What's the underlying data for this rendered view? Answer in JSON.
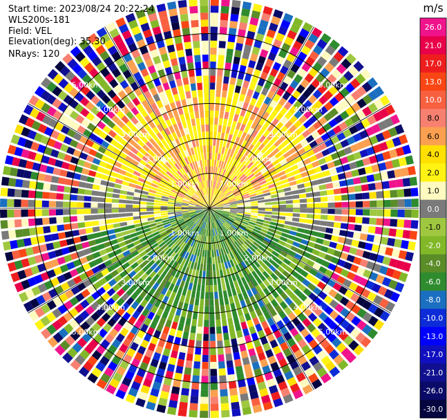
{
  "header": {
    "start_time": "Start time: 2023/08/24 20:22:24",
    "instrument": "WLS200s-181",
    "field": "Field: VEL",
    "elevation": "Elevation(deg): 35.30",
    "nrays": "NRays: 120"
  },
  "chart_data": {
    "type": "heatmap",
    "projection": "polar-ppi",
    "field": "VEL",
    "n_rays": 120,
    "elevation_deg": 35.3,
    "max_range_km": 6.0,
    "range_rings_km": [
      1.0,
      2.0,
      3.0,
      4.0,
      5.0
    ],
    "range_ring_labels": [
      "1.00km",
      "2.00km",
      "3.00km",
      "4.00km",
      "5.00km"
    ],
    "colorbar": {
      "unit": "m/s",
      "ticks": [
        "26.0",
        "21.0",
        "17.0",
        "13.0",
        "10.0",
        "8.0",
        "6.0",
        "4.0",
        "2.0",
        "1.0",
        "0.0",
        "-1.0",
        "-2.0",
        "-4.0",
        "-6.0",
        "-8.0",
        "-10.0",
        "-13.0",
        "-17.0",
        "-21.0",
        "-26.0",
        "-30.0"
      ],
      "colors": [
        "#f0148c",
        "#e8004a",
        "#ee1e1e",
        "#fa4614",
        "#f86040",
        "#f88070",
        "#fba050",
        "#ffe000",
        "#fff314",
        "#fffac0",
        "#7a7a7a",
        "#9fc840",
        "#82b828",
        "#5a8c28",
        "#2e8b2e",
        "#1a6fc0",
        "#0d2cd8",
        "#0000ff",
        "#1010c0",
        "#101090",
        "#0a0a68",
        "#050540"
      ]
    }
  }
}
